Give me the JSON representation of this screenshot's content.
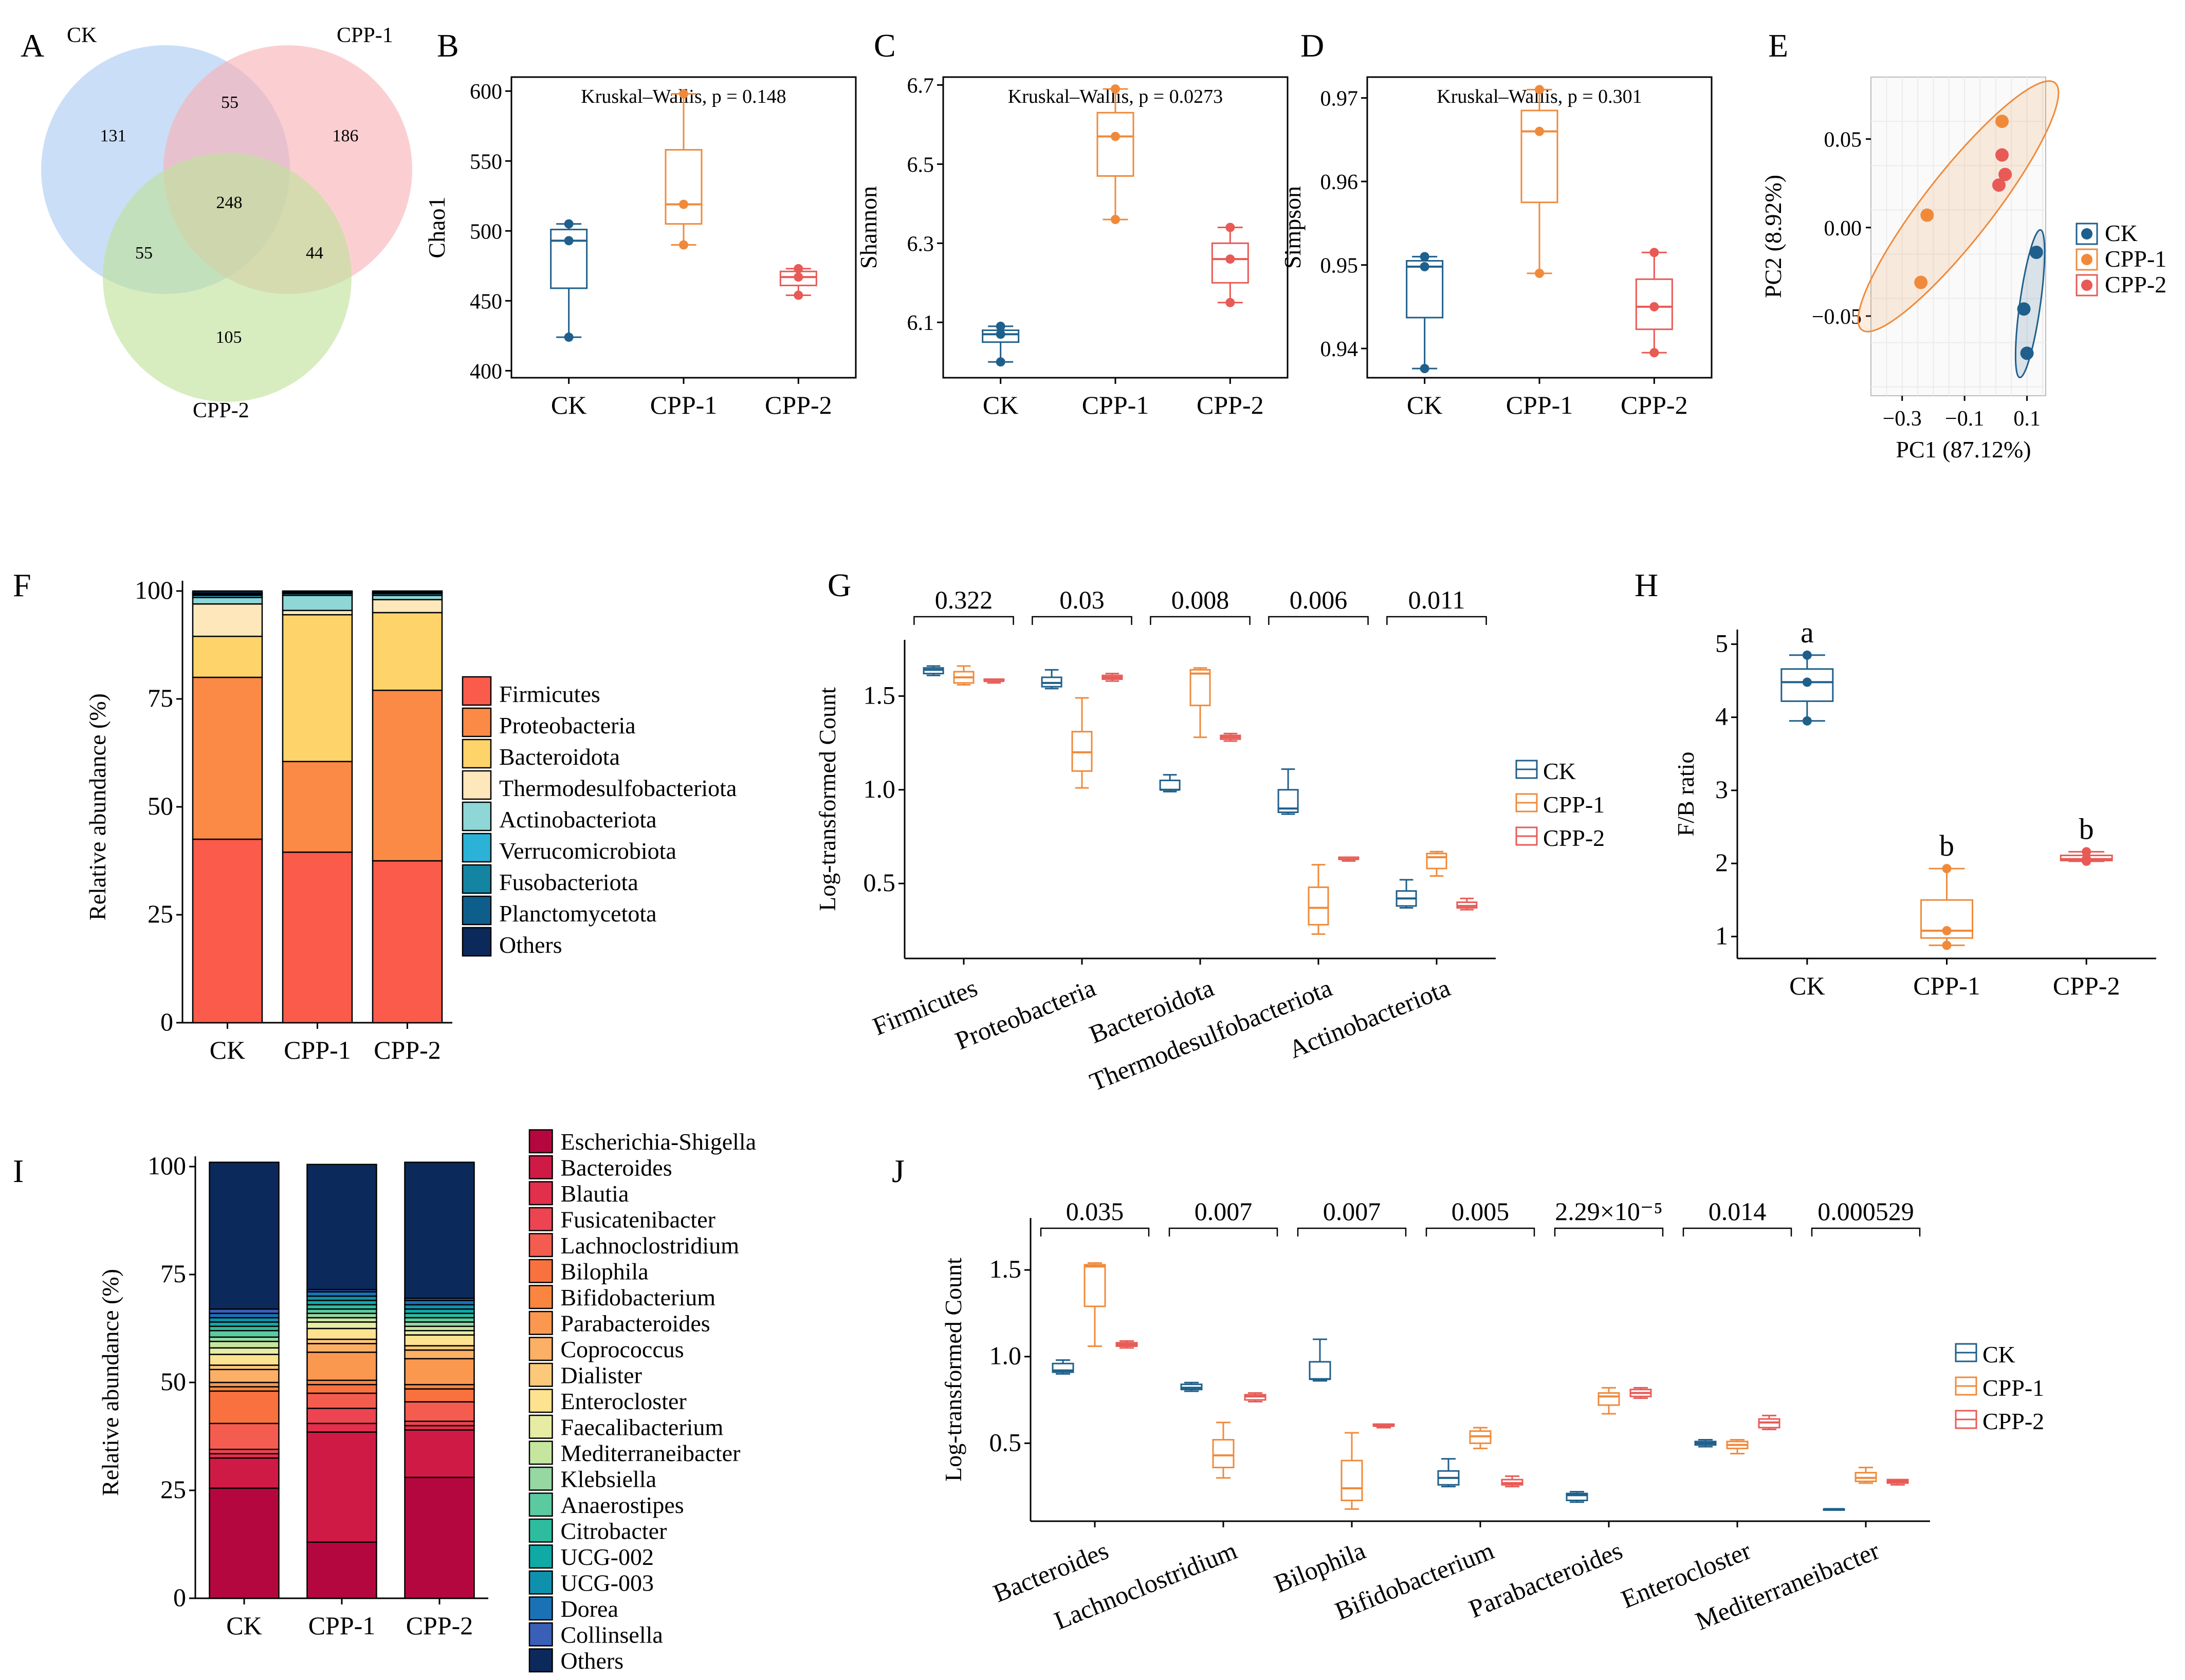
{
  "panels": {
    "A": "A",
    "B": "B",
    "C": "C",
    "D": "D",
    "E": "E",
    "F": "F",
    "G": "G",
    "H": "H",
    "I": "I",
    "J": "J"
  },
  "colors": {
    "CK": "#1f5f8b",
    "CPP-1": "#f08a3a",
    "CPP-2": "#e85a55"
  },
  "chart_data": [
    {
      "id": "A",
      "type": "venn",
      "sets": [
        "CK",
        "CPP-1",
        "CPP-2"
      ],
      "set_colors": [
        "#a9c9f2",
        "#f9b2b4",
        "#bfe29a"
      ],
      "regions": {
        "CK_only": "131",
        "CPP1_only": "186",
        "CPP2_only": "105",
        "CK_CPP1": "55",
        "CK_CPP2": "55",
        "CPP1_CPP2": "44",
        "all": "248"
      }
    },
    {
      "id": "B",
      "type": "box",
      "title": "Kruskal–Wallis, p = 0.148",
      "ylabel": "Chao1",
      "categories": [
        "CK",
        "CPP-1",
        "CPP-2"
      ],
      "ylim": [
        395,
        610
      ],
      "yticks": [
        400,
        450,
        500,
        550,
        600
      ],
      "boxes": [
        {
          "min": 424,
          "q1": 459,
          "median": 493,
          "q3": 501,
          "max": 505,
          "points": [
            424,
            493,
            505
          ]
        },
        {
          "min": 490,
          "q1": 505,
          "median": 519,
          "q3": 558,
          "max": 598,
          "points": [
            490,
            519,
            598
          ]
        },
        {
          "min": 454,
          "q1": 461,
          "median": 467,
          "q3": 471,
          "max": 473,
          "points": [
            454,
            467,
            473
          ]
        }
      ]
    },
    {
      "id": "C",
      "type": "box",
      "title": "Kruskal–Wallis, p = 0.0273",
      "ylabel": "Shannon",
      "categories": [
        "CK",
        "CPP-1",
        "CPP-2"
      ],
      "ylim": [
        5.96,
        6.72
      ],
      "yticks": [
        6.1,
        6.3,
        6.5,
        6.7
      ],
      "boxes": [
        {
          "min": 6.0,
          "q1": 6.05,
          "median": 6.07,
          "q3": 6.08,
          "max": 6.09,
          "points": [
            6.0,
            6.07,
            6.09
          ]
        },
        {
          "min": 6.36,
          "q1": 6.47,
          "median": 6.57,
          "q3": 6.63,
          "max": 6.69,
          "points": [
            6.36,
            6.57,
            6.69
          ]
        },
        {
          "min": 6.15,
          "q1": 6.2,
          "median": 6.26,
          "q3": 6.3,
          "max": 6.34,
          "points": [
            6.15,
            6.26,
            6.34
          ]
        }
      ]
    },
    {
      "id": "D",
      "type": "box",
      "title": "Kruskal–Wallis, p = 0.301",
      "ylabel": "Simpson",
      "categories": [
        "CK",
        "CPP-1",
        "CPP-2"
      ],
      "ylim": [
        0.9365,
        0.9725
      ],
      "yticks": [
        0.94,
        0.95,
        0.96,
        0.97
      ],
      "boxes": [
        {
          "min": 0.9376,
          "q1": 0.9437,
          "median": 0.9498,
          "q3": 0.9505,
          "max": 0.951,
          "points": [
            0.9376,
            0.9498,
            0.951
          ]
        },
        {
          "min": 0.949,
          "q1": 0.9575,
          "median": 0.966,
          "q3": 0.9685,
          "max": 0.971,
          "points": [
            0.949,
            0.966,
            0.971
          ]
        },
        {
          "min": 0.9395,
          "q1": 0.9423,
          "median": 0.945,
          "q3": 0.9483,
          "max": 0.9515,
          "points": [
            0.9395,
            0.945,
            0.9515
          ]
        }
      ]
    },
    {
      "id": "E",
      "type": "scatter",
      "xlabel": "PC1 (87.12%)",
      "ylabel": "PC2 (8.92%)",
      "xlim": [
        -0.4,
        0.16
      ],
      "ylim": [
        -0.095,
        0.085
      ],
      "xticks": [
        -0.3,
        -0.1,
        0.1
      ],
      "xtick_labels": [
        "−0.3",
        "−0.1",
        "0.1"
      ],
      "yticks": [
        -0.05,
        0.0,
        0.05
      ],
      "ytick_labels": [
        "−0.05",
        "0.00",
        "0.05"
      ],
      "series": [
        {
          "name": "CK",
          "x": [
            0.13,
            0.09,
            0.1
          ],
          "y": [
            -0.014,
            -0.046,
            -0.071
          ]
        },
        {
          "name": "CPP-1",
          "x": [
            -0.22,
            -0.24,
            0.02
          ],
          "y": [
            0.007,
            -0.031,
            0.06
          ]
        },
        {
          "name": "CPP-2",
          "x": [
            0.02,
            0.03,
            0.01
          ],
          "y": [
            0.041,
            0.03,
            0.024
          ]
        }
      ],
      "legend": [
        "CK",
        "CPP-1",
        "CPP-2"
      ]
    },
    {
      "id": "F",
      "type": "stacked-bar",
      "ylabel": "Relative abundance (%)",
      "categories": [
        "CK",
        "CPP-1",
        "CPP-2"
      ],
      "yticks": [
        0,
        25,
        50,
        75,
        100
      ],
      "series": [
        {
          "name": "Firmicutes",
          "color": "#fa5b4b",
          "values": [
            42.5,
            39.5,
            37.5
          ]
        },
        {
          "name": "Proteobacteria",
          "color": "#fa8a45",
          "values": [
            37.5,
            21.0,
            39.5
          ]
        },
        {
          "name": "Bacteroidota",
          "color": "#fdd36a",
          "values": [
            9.5,
            34.0,
            18.0
          ]
        },
        {
          "name": "Thermodesulfobacteriota",
          "color": "#fde7bb",
          "values": [
            7.5,
            1.0,
            3.0
          ]
        },
        {
          "name": "Actinobacteriota",
          "color": "#8fd6d6",
          "values": [
            1.5,
            3.5,
            1.0
          ]
        },
        {
          "name": "Verrucomicrobiota",
          "color": "#2bb2d6",
          "values": [
            0.5,
            0.4,
            0.4
          ]
        },
        {
          "name": "Fusobacteriota",
          "color": "#1484a3",
          "values": [
            0.3,
            0.2,
            0.2
          ]
        },
        {
          "name": "Planctomycetota",
          "color": "#0e5e8c",
          "values": [
            0.2,
            0.2,
            0.2
          ]
        },
        {
          "name": "Others",
          "color": "#0b2a5b",
          "values": [
            0.5,
            0.2,
            0.2
          ]
        }
      ]
    },
    {
      "id": "G",
      "type": "grouped-box",
      "ylabel": "Log-transformed Count",
      "categories": [
        "Firmicutes",
        "Proteobacteria",
        "Bacteroidota",
        "Thermodesulfobacteriota",
        "Actinobacteriota"
      ],
      "pvalues": [
        "0.322",
        "0.03",
        "0.008",
        "0.006",
        "0.011"
      ],
      "ylim": [
        0.1,
        1.8
      ],
      "yticks": [
        0.5,
        1.0,
        1.5
      ],
      "groups": [
        "CK",
        "CPP-1",
        "CPP-2"
      ],
      "boxes": [
        [
          [
            1.61,
            1.62,
            1.64,
            1.65,
            1.66
          ],
          [
            1.56,
            1.57,
            1.6,
            1.63,
            1.66
          ],
          [
            1.57,
            1.58,
            1.58,
            1.59,
            1.59
          ]
        ],
        [
          [
            1.54,
            1.55,
            1.57,
            1.6,
            1.64
          ],
          [
            1.01,
            1.1,
            1.2,
            1.31,
            1.49
          ],
          [
            1.58,
            1.59,
            1.6,
            1.61,
            1.62
          ]
        ],
        [
          [
            0.99,
            1.0,
            1.0,
            1.05,
            1.08
          ],
          [
            1.28,
            1.45,
            1.62,
            1.64,
            1.65
          ],
          [
            1.26,
            1.27,
            1.28,
            1.29,
            1.3
          ]
        ],
        [
          [
            0.87,
            0.88,
            0.9,
            1.0,
            1.11
          ],
          [
            0.23,
            0.28,
            0.37,
            0.48,
            0.6
          ],
          [
            0.62,
            0.63,
            0.63,
            0.64,
            0.64
          ]
        ],
        [
          [
            0.37,
            0.38,
            0.42,
            0.46,
            0.52
          ],
          [
            0.54,
            0.58,
            0.64,
            0.66,
            0.67
          ],
          [
            0.36,
            0.37,
            0.38,
            0.4,
            0.42
          ]
        ]
      ],
      "legend": [
        "CK",
        "CPP-1",
        "CPP-2"
      ]
    },
    {
      "id": "H",
      "type": "box",
      "ylabel": "F/B ratio",
      "categories": [
        "CK",
        "CPP-1",
        "CPP-2"
      ],
      "ylim": [
        0.7,
        5.2
      ],
      "yticks": [
        1,
        2,
        3,
        4,
        5
      ],
      "letters": [
        "a",
        "b",
        "b"
      ],
      "boxes": [
        {
          "min": 3.95,
          "q1": 4.22,
          "median": 4.48,
          "q3": 4.66,
          "max": 4.85,
          "points": [
            3.95,
            4.48,
            4.85
          ]
        },
        {
          "min": 0.88,
          "q1": 0.98,
          "median": 1.08,
          "q3": 1.5,
          "max": 1.93,
          "points": [
            0.88,
            1.08,
            1.93
          ]
        },
        {
          "min": 2.03,
          "q1": 2.04,
          "median": 2.06,
          "q3": 2.11,
          "max": 2.16,
          "points": [
            2.03,
            2.06,
            2.16
          ]
        }
      ]
    },
    {
      "id": "I",
      "type": "stacked-bar",
      "ylabel": "Relative abundance (%)",
      "categories": [
        "CK",
        "CPP-1",
        "CPP-2"
      ],
      "yticks": [
        0,
        25,
        50,
        75,
        100
      ],
      "series": [
        {
          "name": "Escherichia-Shigella",
          "color": "#b5073f",
          "values": [
            25.5,
            13.0,
            28.0
          ]
        },
        {
          "name": "Bacteroides",
          "color": "#d01a46",
          "values": [
            7.0,
            25.5,
            11.0
          ]
        },
        {
          "name": "Blautia",
          "color": "#e12f4c",
          "values": [
            1.0,
            2.0,
            1.0
          ]
        },
        {
          "name": "Fusicatenibacter",
          "color": "#ec4551",
          "values": [
            1.0,
            3.5,
            1.0
          ]
        },
        {
          "name": "Lachnoclostridium",
          "color": "#f55c50",
          "values": [
            6.0,
            3.5,
            4.5
          ]
        },
        {
          "name": "Bilophila",
          "color": "#f8713e",
          "values": [
            7.5,
            2.0,
            3.0
          ]
        },
        {
          "name": "Bifidobacterium",
          "color": "#f9853f",
          "values": [
            1.0,
            1.0,
            1.0
          ]
        },
        {
          "name": "Parabacteroides",
          "color": "#fa9850",
          "values": [
            1.0,
            6.5,
            6.0
          ]
        },
        {
          "name": "Coprococcus",
          "color": "#fbb066",
          "values": [
            3.0,
            2.0,
            2.0
          ]
        },
        {
          "name": "Dialister",
          "color": "#fcc97b",
          "values": [
            1.0,
            1.0,
            1.0
          ]
        },
        {
          "name": "Enterocloster",
          "color": "#fde38f",
          "values": [
            2.5,
            2.5,
            2.5
          ]
        },
        {
          "name": "Faecalibacterium",
          "color": "#e6eca4",
          "values": [
            1.5,
            1.5,
            1.0
          ]
        },
        {
          "name": "Mediterraneibacter",
          "color": "#c6e6a0",
          "values": [
            1.5,
            1.0,
            1.0
          ]
        },
        {
          "name": "Klebsiella",
          "color": "#96d7a2",
          "values": [
            1.0,
            1.0,
            1.0
          ]
        },
        {
          "name": "Anaerostipes",
          "color": "#5ccaa0",
          "values": [
            1.5,
            1.0,
            1.0
          ]
        },
        {
          "name": "Citrobacter",
          "color": "#2ebc9f",
          "values": [
            1.0,
            1.0,
            1.0
          ]
        },
        {
          "name": "UCG-002",
          "color": "#10a9a5",
          "values": [
            1.0,
            1.0,
            1.0
          ]
        },
        {
          "name": "UCG-003",
          "color": "#0f91ad",
          "values": [
            1.0,
            1.0,
            1.0
          ]
        },
        {
          "name": "Dorea",
          "color": "#1a72b5",
          "values": [
            1.0,
            1.0,
            1.0
          ]
        },
        {
          "name": "Collinsella",
          "color": "#3a5fb7",
          "values": [
            1.0,
            0.5,
            0.5
          ]
        },
        {
          "name": "Others",
          "color": "#0b2a5b",
          "values": [
            34.0,
            29.0,
            31.5
          ]
        }
      ]
    },
    {
      "id": "J",
      "type": "grouped-box",
      "ylabel": "Log-transformed Count",
      "categories": [
        "Bacteroides",
        "Lachnoclostridium",
        "Bilophila",
        "Bifidobacterium",
        "Parabacteroides",
        "Enterocloster",
        "Mediterraneibacter"
      ],
      "pvalues": [
        "0.035",
        "0.007",
        "0.007",
        "0.005",
        "2.29×10⁻⁵",
        "0.014",
        "0.000529"
      ],
      "ylim": [
        0.05,
        1.8
      ],
      "yticks": [
        0.5,
        1.0,
        1.5
      ],
      "groups": [
        "CK",
        "CPP-1",
        "CPP-2"
      ],
      "boxes": [
        [
          [
            0.9,
            0.91,
            0.92,
            0.96,
            0.98
          ],
          [
            1.06,
            1.29,
            1.52,
            1.53,
            1.54
          ],
          [
            1.05,
            1.06,
            1.07,
            1.08,
            1.09
          ]
        ],
        [
          [
            0.8,
            0.81,
            0.82,
            0.84,
            0.85
          ],
          [
            0.3,
            0.36,
            0.43,
            0.52,
            0.62
          ],
          [
            0.74,
            0.75,
            0.77,
            0.78,
            0.79
          ]
        ],
        [
          [
            0.86,
            0.87,
            0.87,
            0.97,
            1.1
          ],
          [
            0.12,
            0.17,
            0.24,
            0.4,
            0.56
          ],
          [
            0.59,
            0.6,
            0.6,
            0.61,
            0.61
          ]
        ],
        [
          [
            0.25,
            0.26,
            0.3,
            0.34,
            0.41
          ],
          [
            0.47,
            0.5,
            0.54,
            0.57,
            0.59
          ],
          [
            0.25,
            0.26,
            0.27,
            0.29,
            0.31
          ]
        ],
        [
          [
            0.16,
            0.17,
            0.2,
            0.21,
            0.22
          ],
          [
            0.67,
            0.72,
            0.77,
            0.79,
            0.82
          ],
          [
            0.76,
            0.77,
            0.79,
            0.81,
            0.82
          ]
        ],
        [
          [
            0.48,
            0.49,
            0.5,
            0.51,
            0.52
          ],
          [
            0.44,
            0.47,
            0.49,
            0.51,
            0.52
          ],
          [
            0.58,
            0.59,
            0.62,
            0.64,
            0.66
          ]
        ],
        [
          [
            0.12,
            0.12,
            0.12,
            0.12,
            0.12
          ],
          [
            0.27,
            0.28,
            0.3,
            0.33,
            0.36
          ],
          [
            0.26,
            0.27,
            0.28,
            0.29,
            0.29
          ]
        ]
      ],
      "legend": [
        "CK",
        "CPP-1",
        "CPP-2"
      ]
    }
  ]
}
